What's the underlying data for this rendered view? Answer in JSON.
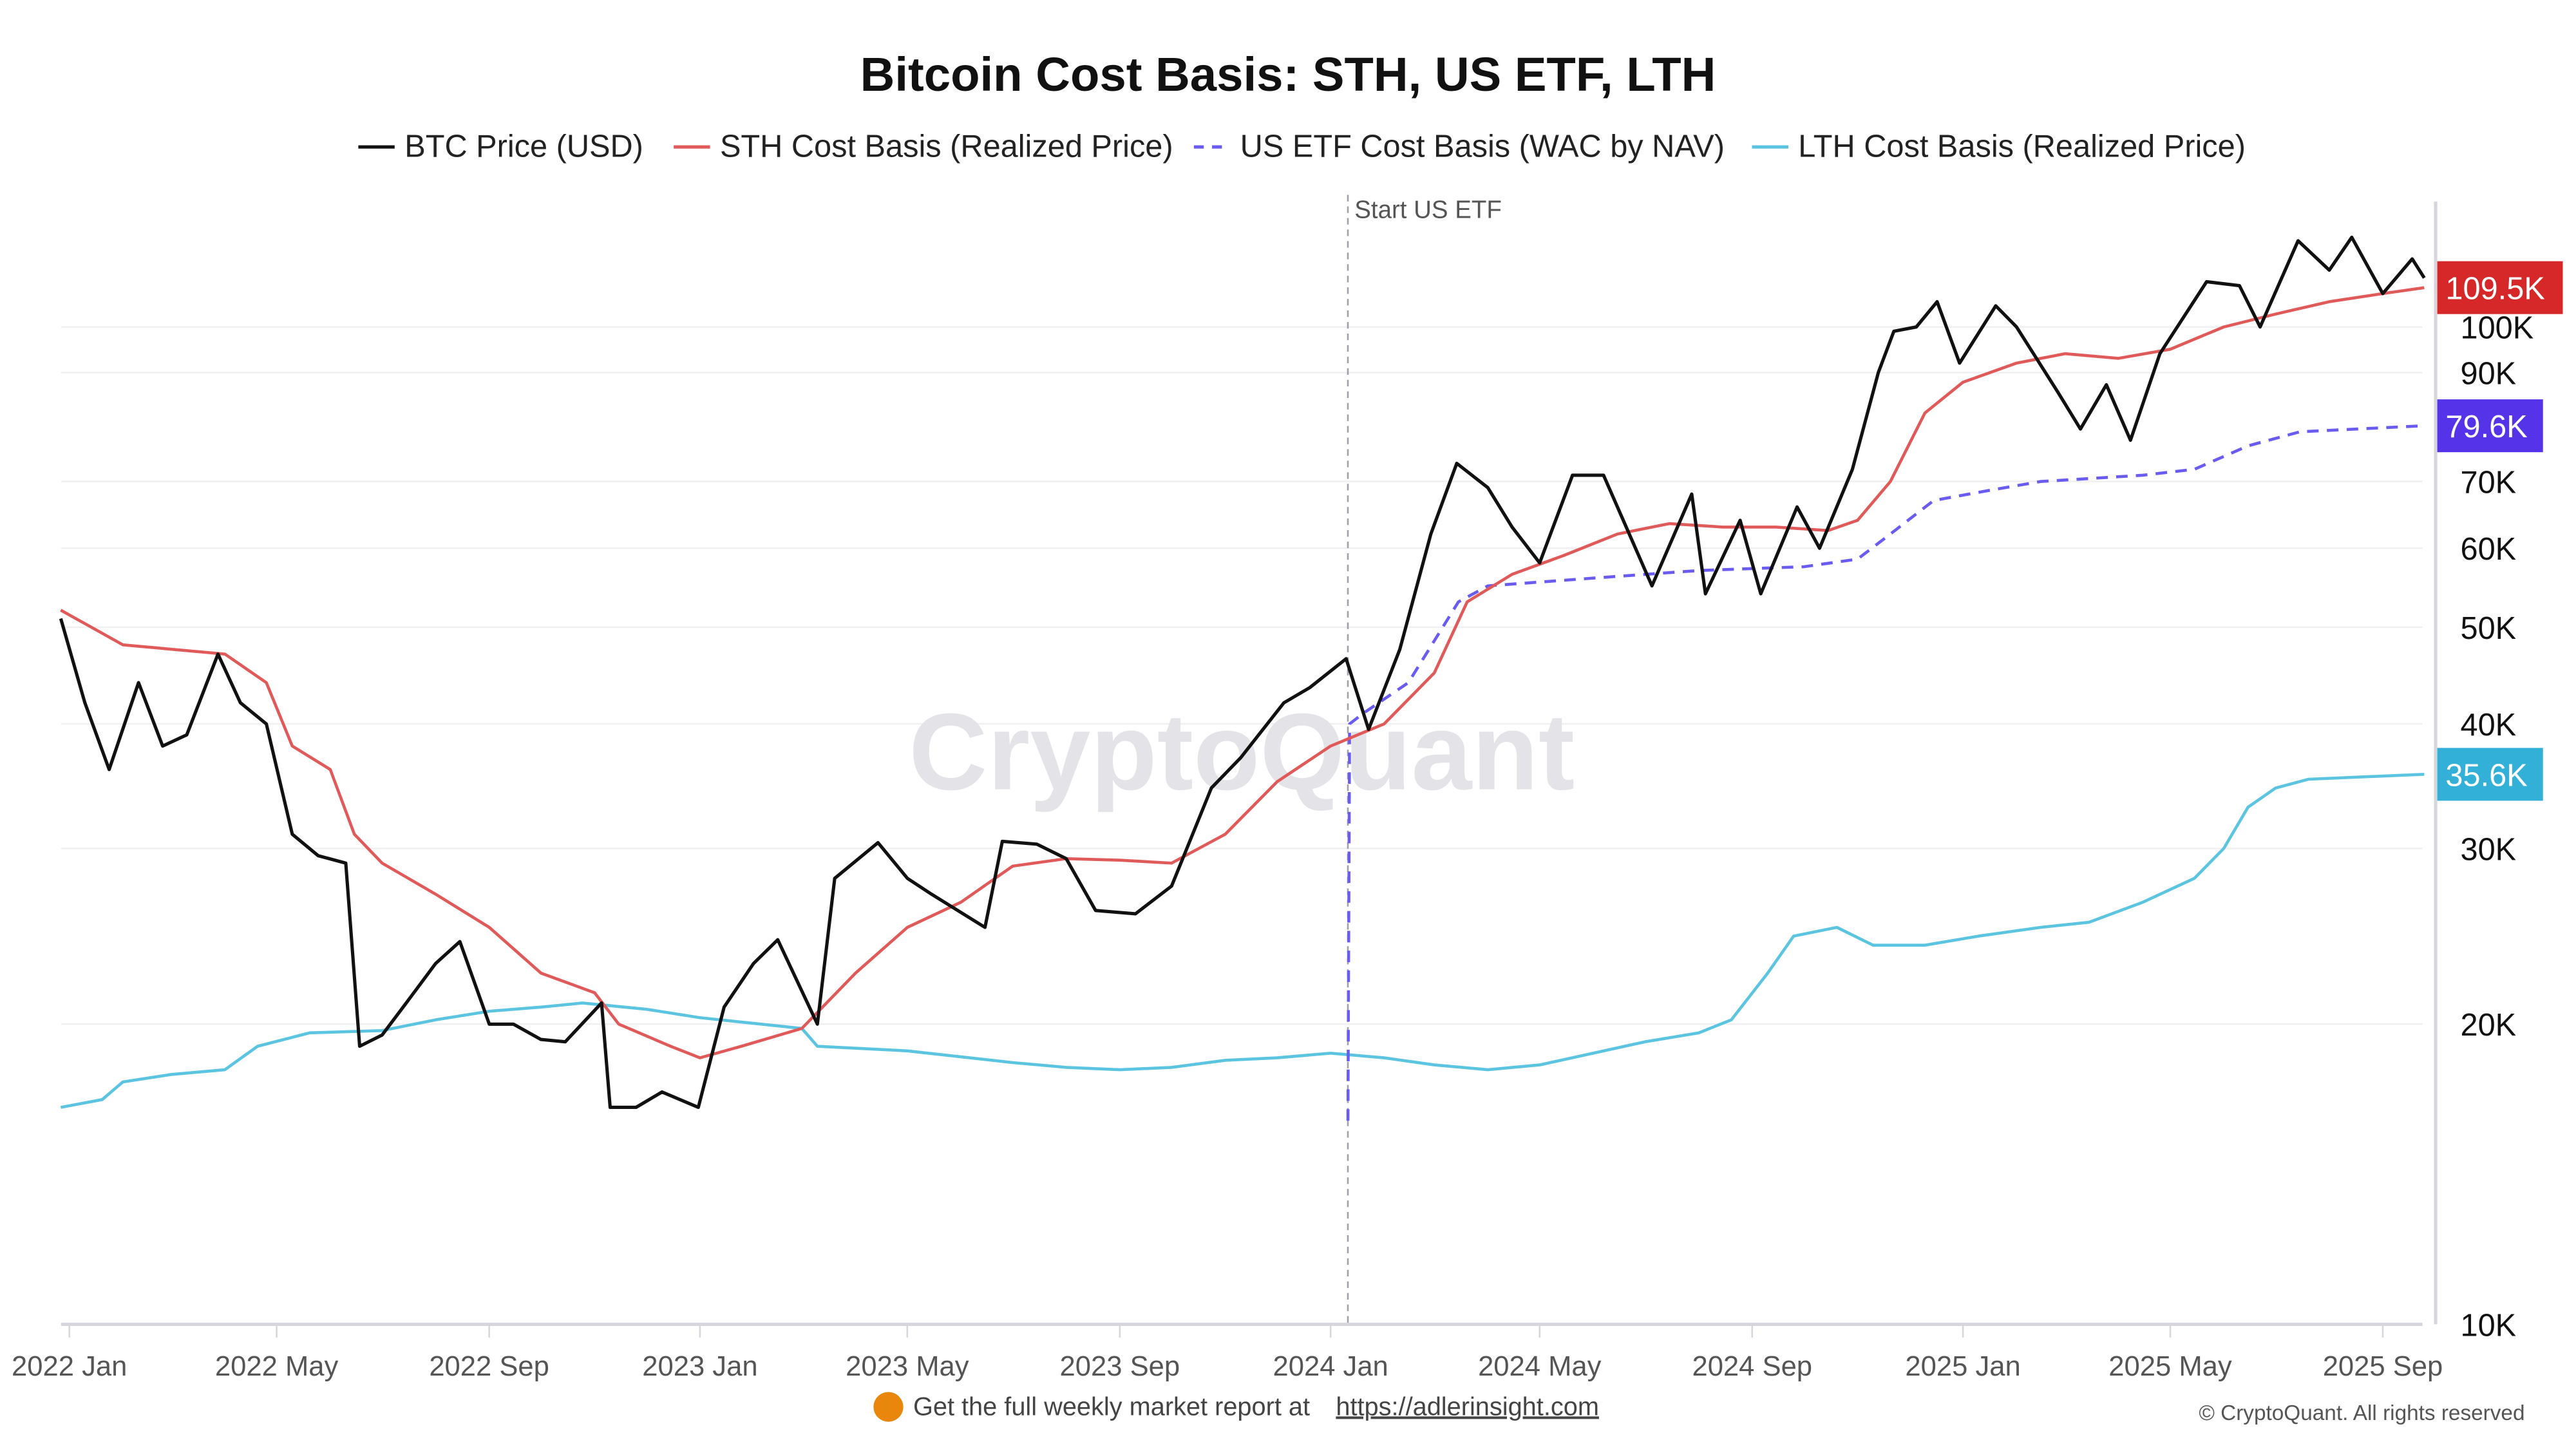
{
  "chart_data": {
    "type": "line",
    "title": "Bitcoin Cost Basis: STH, US ETF, LTH",
    "y_scale": "log",
    "ylim": [
      10000,
      134000
    ],
    "xlim": [
      "2021-12-27",
      "2025-09-27"
    ],
    "grid": true,
    "legend_placement": "top",
    "y_ticks": [
      {
        "value": 10000,
        "label": "10K"
      },
      {
        "value": 20000,
        "label": "20K"
      },
      {
        "value": 30000,
        "label": "30K"
      },
      {
        "value": 40000,
        "label": "40K"
      },
      {
        "value": 50000,
        "label": "50K"
      },
      {
        "value": 60000,
        "label": "60K"
      },
      {
        "value": 70000,
        "label": "70K"
      },
      {
        "value": 90000,
        "label": "90K"
      },
      {
        "value": 100000,
        "label": "100K"
      }
    ],
    "x_ticks": [
      {
        "date": "2022-01-01",
        "label": "2022 Jan"
      },
      {
        "date": "2022-05-01",
        "label": "2022 May"
      },
      {
        "date": "2022-09-01",
        "label": "2022 Sep"
      },
      {
        "date": "2023-01-01",
        "label": "2023 Jan"
      },
      {
        "date": "2023-05-01",
        "label": "2023 May"
      },
      {
        "date": "2023-09-01",
        "label": "2023 Sep"
      },
      {
        "date": "2024-01-01",
        "label": "2024 Jan"
      },
      {
        "date": "2024-05-01",
        "label": "2024 May"
      },
      {
        "date": "2024-09-01",
        "label": "2024 Sep"
      },
      {
        "date": "2025-01-01",
        "label": "2025 Jan"
      },
      {
        "date": "2025-05-01",
        "label": "2025 May"
      },
      {
        "date": "2025-09-01",
        "label": "2025 Sep"
      }
    ],
    "annotation": {
      "date": "2024-01-11",
      "label": "Start US ETF"
    },
    "series": [
      {
        "name": "BTC Price (USD)",
        "color": "#111111",
        "dashed": false,
        "last_label": "",
        "points": [
          [
            "2021-12-27",
            51000
          ],
          [
            "2022-01-10",
            42000
          ],
          [
            "2022-01-24",
            36000
          ],
          [
            "2022-02-10",
            44000
          ],
          [
            "2022-02-24",
            38000
          ],
          [
            "2022-03-10",
            39000
          ],
          [
            "2022-03-28",
            47000
          ],
          [
            "2022-04-10",
            42000
          ],
          [
            "2022-04-25",
            40000
          ],
          [
            "2022-05-10",
            31000
          ],
          [
            "2022-05-25",
            29500
          ],
          [
            "2022-06-10",
            29000
          ],
          [
            "2022-06-18",
            19000
          ],
          [
            "2022-07-01",
            19500
          ],
          [
            "2022-07-15",
            21000
          ],
          [
            "2022-08-01",
            23000
          ],
          [
            "2022-08-15",
            24200
          ],
          [
            "2022-09-01",
            20000
          ],
          [
            "2022-09-15",
            20000
          ],
          [
            "2022-10-01",
            19300
          ],
          [
            "2022-10-15",
            19200
          ],
          [
            "2022-11-05",
            21000
          ],
          [
            "2022-11-10",
            16500
          ],
          [
            "2022-11-25",
            16500
          ],
          [
            "2022-12-10",
            17100
          ],
          [
            "2022-12-31",
            16500
          ],
          [
            "2023-01-15",
            20800
          ],
          [
            "2023-02-01",
            23000
          ],
          [
            "2023-02-15",
            24300
          ],
          [
            "2023-03-10",
            20000
          ],
          [
            "2023-03-20",
            28000
          ],
          [
            "2023-04-14",
            30400
          ],
          [
            "2023-05-01",
            28000
          ],
          [
            "2023-05-15",
            27000
          ],
          [
            "2023-06-15",
            25000
          ],
          [
            "2023-06-25",
            30500
          ],
          [
            "2023-07-15",
            30300
          ],
          [
            "2023-08-01",
            29300
          ],
          [
            "2023-08-18",
            26000
          ],
          [
            "2023-09-10",
            25800
          ],
          [
            "2023-10-01",
            27500
          ],
          [
            "2023-10-24",
            34500
          ],
          [
            "2023-11-10",
            37000
          ],
          [
            "2023-12-05",
            42000
          ],
          [
            "2023-12-20",
            43500
          ],
          [
            "2024-01-10",
            46500
          ],
          [
            "2024-01-23",
            39500
          ],
          [
            "2024-02-10",
            47500
          ],
          [
            "2024-02-28",
            62000
          ],
          [
            "2024-03-14",
            73000
          ],
          [
            "2024-04-01",
            69000
          ],
          [
            "2024-04-15",
            63000
          ],
          [
            "2024-05-01",
            58000
          ],
          [
            "2024-05-20",
            71000
          ],
          [
            "2024-06-07",
            71000
          ],
          [
            "2024-07-05",
            55000
          ],
          [
            "2024-07-28",
            68000
          ],
          [
            "2024-08-05",
            54000
          ],
          [
            "2024-08-25",
            64000
          ],
          [
            "2024-09-06",
            54000
          ],
          [
            "2024-09-27",
            66000
          ],
          [
            "2024-10-10",
            60000
          ],
          [
            "2024-10-29",
            72000
          ],
          [
            "2024-11-13",
            90000
          ],
          [
            "2024-11-22",
            99000
          ],
          [
            "2024-12-05",
            100000
          ],
          [
            "2024-12-17",
            106000
          ],
          [
            "2024-12-30",
            92000
          ],
          [
            "2025-01-20",
            105000
          ],
          [
            "2025-02-01",
            100000
          ],
          [
            "2025-02-25",
            86000
          ],
          [
            "2025-03-10",
            79000
          ],
          [
            "2025-03-25",
            87500
          ],
          [
            "2025-04-08",
            77000
          ],
          [
            "2025-04-25",
            94000
          ],
          [
            "2025-05-22",
            111000
          ],
          [
            "2025-06-10",
            110000
          ],
          [
            "2025-06-22",
            100000
          ],
          [
            "2025-07-14",
            122000
          ],
          [
            "2025-08-01",
            114000
          ],
          [
            "2025-08-14",
            123000
          ],
          [
            "2025-09-01",
            108000
          ],
          [
            "2025-09-18",
            117000
          ],
          [
            "2025-09-25",
            112000
          ]
        ]
      },
      {
        "name": "STH Cost Basis (Realized Price)",
        "color": "#e05a5a",
        "dashed": false,
        "last_label": "109.5K",
        "badge_color": "#d62828",
        "points": [
          [
            "2021-12-27",
            52000
          ],
          [
            "2022-02-01",
            48000
          ],
          [
            "2022-04-01",
            47000
          ],
          [
            "2022-04-25",
            44000
          ],
          [
            "2022-05-10",
            38000
          ],
          [
            "2022-06-01",
            36000
          ],
          [
            "2022-06-15",
            31000
          ],
          [
            "2022-07-01",
            29000
          ],
          [
            "2022-08-01",
            27000
          ],
          [
            "2022-09-01",
            25000
          ],
          [
            "2022-10-01",
            22500
          ],
          [
            "2022-11-01",
            21500
          ],
          [
            "2022-11-15",
            20000
          ],
          [
            "2022-12-15",
            19000
          ],
          [
            "2023-01-01",
            18500
          ],
          [
            "2023-01-25",
            19000
          ],
          [
            "2023-03-01",
            19800
          ],
          [
            "2023-04-01",
            22500
          ],
          [
            "2023-05-01",
            25000
          ],
          [
            "2023-06-01",
            26500
          ],
          [
            "2023-07-01",
            28800
          ],
          [
            "2023-08-01",
            29300
          ],
          [
            "2023-09-01",
            29200
          ],
          [
            "2023-10-01",
            29000
          ],
          [
            "2023-11-01",
            31000
          ],
          [
            "2023-12-01",
            35000
          ],
          [
            "2024-01-01",
            38000
          ],
          [
            "2024-02-01",
            40000
          ],
          [
            "2024-03-01",
            45000
          ],
          [
            "2024-03-20",
            53000
          ],
          [
            "2024-04-15",
            56500
          ],
          [
            "2024-05-15",
            59000
          ],
          [
            "2024-06-15",
            62000
          ],
          [
            "2024-07-15",
            63500
          ],
          [
            "2024-08-15",
            63000
          ],
          [
            "2024-09-15",
            63000
          ],
          [
            "2024-10-15",
            62500
          ],
          [
            "2024-11-01",
            64000
          ],
          [
            "2024-11-20",
            70000
          ],
          [
            "2024-12-10",
            82000
          ],
          [
            "2025-01-01",
            88000
          ],
          [
            "2025-02-01",
            92000
          ],
          [
            "2025-03-01",
            94000
          ],
          [
            "2025-04-01",
            93000
          ],
          [
            "2025-05-01",
            95000
          ],
          [
            "2025-06-01",
            100000
          ],
          [
            "2025-07-01",
            103000
          ],
          [
            "2025-08-01",
            106000
          ],
          [
            "2025-09-01",
            108000
          ],
          [
            "2025-09-25",
            109500
          ]
        ]
      },
      {
        "name": "US ETF Cost Basis (WAC by NAV)",
        "color": "#6a5cf0",
        "dashed": true,
        "last_label": "79.6K",
        "badge_color": "#5533e8",
        "points": [
          [
            "2024-01-11",
            16000
          ],
          [
            "2024-01-12",
            40000
          ],
          [
            "2024-01-20",
            41000
          ],
          [
            "2024-02-15",
            44000
          ],
          [
            "2024-03-15",
            53000
          ],
          [
            "2024-04-01",
            55000
          ],
          [
            "2024-06-01",
            56000
          ],
          [
            "2024-08-01",
            57000
          ],
          [
            "2024-10-01",
            57500
          ],
          [
            "2024-11-01",
            58500
          ],
          [
            "2024-11-20",
            62000
          ],
          [
            "2024-12-15",
            67000
          ],
          [
            "2025-01-15",
            68500
          ],
          [
            "2025-02-15",
            70000
          ],
          [
            "2025-04-15",
            71000
          ],
          [
            "2025-05-15",
            72000
          ],
          [
            "2025-06-15",
            76000
          ],
          [
            "2025-07-15",
            78500
          ],
          [
            "2025-09-25",
            79600
          ]
        ]
      },
      {
        "name": "LTH Cost Basis (Realized Price)",
        "color": "#5bc4e0",
        "dashed": false,
        "last_label": "35.6K",
        "badge_color": "#33b0d8",
        "points": [
          [
            "2021-12-27",
            16500
          ],
          [
            "2022-01-20",
            16800
          ],
          [
            "2022-02-01",
            17500
          ],
          [
            "2022-03-01",
            17800
          ],
          [
            "2022-04-01",
            18000
          ],
          [
            "2022-04-20",
            19000
          ],
          [
            "2022-05-20",
            19600
          ],
          [
            "2022-07-01",
            19700
          ],
          [
            "2022-08-01",
            20200
          ],
          [
            "2022-09-01",
            20600
          ],
          [
            "2022-10-01",
            20800
          ],
          [
            "2022-10-25",
            21000
          ],
          [
            "2022-12-01",
            20700
          ],
          [
            "2023-01-01",
            20300
          ],
          [
            "2023-03-01",
            19800
          ],
          [
            "2023-03-10",
            19000
          ],
          [
            "2023-05-01",
            18800
          ],
          [
            "2023-07-01",
            18300
          ],
          [
            "2023-08-01",
            18100
          ],
          [
            "2023-09-01",
            18000
          ],
          [
            "2023-10-01",
            18100
          ],
          [
            "2023-11-01",
            18400
          ],
          [
            "2023-12-01",
            18500
          ],
          [
            "2024-01-01",
            18700
          ],
          [
            "2024-02-01",
            18500
          ],
          [
            "2024-03-01",
            18200
          ],
          [
            "2024-04-01",
            18000
          ],
          [
            "2024-05-01",
            18200
          ],
          [
            "2024-06-01",
            18700
          ],
          [
            "2024-07-01",
            19200
          ],
          [
            "2024-08-01",
            19600
          ],
          [
            "2024-08-20",
            20200
          ],
          [
            "2024-09-10",
            22500
          ],
          [
            "2024-09-25",
            24500
          ],
          [
            "2024-10-20",
            25000
          ],
          [
            "2024-11-10",
            24000
          ],
          [
            "2024-12-10",
            24000
          ],
          [
            "2025-01-10",
            24500
          ],
          [
            "2025-02-15",
            25000
          ],
          [
            "2025-03-15",
            25300
          ],
          [
            "2025-04-15",
            26500
          ],
          [
            "2025-05-15",
            28000
          ],
          [
            "2025-06-01",
            30000
          ],
          [
            "2025-06-15",
            33000
          ],
          [
            "2025-07-01",
            34500
          ],
          [
            "2025-07-20",
            35200
          ],
          [
            "2025-09-25",
            35600
          ]
        ]
      }
    ]
  },
  "watermark": "CryptoQuant",
  "footer": {
    "promo_text": "Get the full weekly market report at",
    "promo_link": "https://adlerinsight.com",
    "copyright": "© CryptoQuant. All rights reserved"
  }
}
